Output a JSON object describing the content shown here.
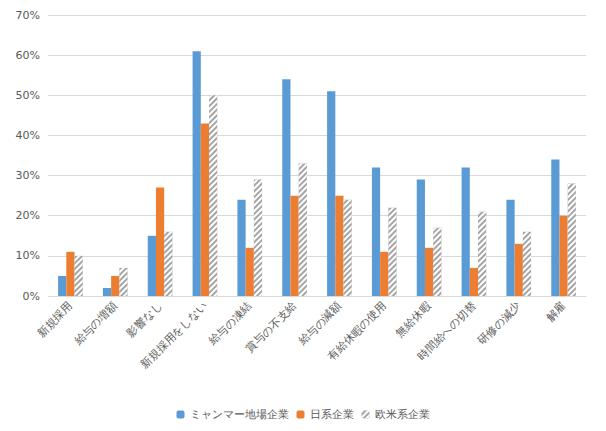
{
  "chart_data": {
    "type": "bar",
    "categories": [
      "新規採用",
      "給与の増額",
      "影響なし",
      "新規採用をしない",
      "給与の凍結",
      "賞与の不支給",
      "給与の減額",
      "有給休暇の使用",
      "無給休暇",
      "時間給への切替",
      "研修の減少",
      "解雇"
    ],
    "series": [
      {
        "name": "ミャンマー地場企業",
        "color": "#5b9bd5",
        "values": [
          5,
          2,
          15,
          61,
          24,
          54,
          51,
          32,
          29,
          32,
          24,
          34
        ]
      },
      {
        "name": "日系企業",
        "color": "#ed7d31",
        "values": [
          11,
          5,
          27,
          43,
          12,
          25,
          25,
          11,
          12,
          7,
          13,
          20
        ]
      },
      {
        "name": "欧米系企業",
        "color": "#a5a5a5",
        "values": [
          10,
          7,
          16,
          50,
          29,
          33,
          24,
          22,
          17,
          21,
          16,
          28
        ]
      }
    ],
    "ylim": [
      0,
      70
    ],
    "yticks": [
      {
        "value": 0,
        "label": "0%"
      },
      {
        "value": 10,
        "label": "10%"
      },
      {
        "value": 20,
        "label": "20%"
      },
      {
        "value": 30,
        "label": "30%"
      },
      {
        "value": 40,
        "label": "40%"
      },
      {
        "value": 50,
        "label": "50%"
      },
      {
        "value": 60,
        "label": "60%"
      },
      {
        "value": 70,
        "label": "70%"
      }
    ],
    "grid": true,
    "legend": "bottom"
  }
}
